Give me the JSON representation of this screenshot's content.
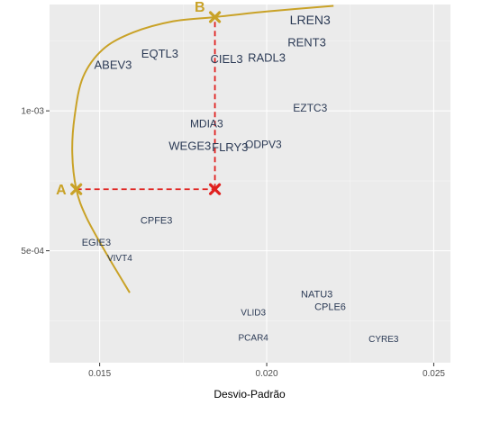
{
  "chart_data": {
    "type": "scatter",
    "title": "",
    "xlabel": "Desvio-Padrão",
    "ylabel": "",
    "xlim": [
      0.0135,
      0.0255
    ],
    "ylim": [
      0.0001,
      0.00138
    ],
    "grid": true,
    "x_ticks": [
      {
        "value": 0.015,
        "label": "0.015"
      },
      {
        "value": 0.02,
        "label": "0.020"
      },
      {
        "value": 0.025,
        "label": "0.025"
      }
    ],
    "y_ticks": [
      {
        "value": 0.0005,
        "label": "5e-04"
      },
      {
        "value": 0.001,
        "label": "1e-03"
      }
    ],
    "points": [
      {
        "label": "LREN3",
        "x": 0.0213,
        "y": 0.001325,
        "size": 14,
        "color": "#35507a"
      },
      {
        "label": "RENT3",
        "x": 0.0212,
        "y": 0.001245,
        "size": 13,
        "color": "#35507a"
      },
      {
        "label": "EQTL3",
        "x": 0.0168,
        "y": 0.001205,
        "size": 13,
        "color": "#2b3a55"
      },
      {
        "label": "ABEV3",
        "x": 0.0154,
        "y": 0.001165,
        "size": 13,
        "color": "#2b3a55"
      },
      {
        "label": "CIEL3",
        "x": 0.0188,
        "y": 0.001185,
        "size": 13,
        "color": "#2b3a55"
      },
      {
        "label": "RADL3",
        "x": 0.02,
        "y": 0.00119,
        "size": 13,
        "color": "#2b3a55"
      },
      {
        "label": "EZTC3",
        "x": 0.0213,
        "y": 0.00101,
        "size": 12,
        "color": "#35507a"
      },
      {
        "label": "MDIA3",
        "x": 0.0182,
        "y": 0.000955,
        "size": 12,
        "color": "#2b3a55"
      },
      {
        "label": "WEGE3",
        "x": 0.0177,
        "y": 0.000875,
        "size": 13,
        "color": "#2b3a55"
      },
      {
        "label": "FLRY3",
        "x": 0.0189,
        "y": 0.00087,
        "size": 13,
        "color": "#2b3a55"
      },
      {
        "label": "ODPV3",
        "x": 0.0199,
        "y": 0.00088,
        "size": 12,
        "color": "#35507a"
      },
      {
        "label": "CPFE3",
        "x": 0.0167,
        "y": 0.00061,
        "size": 11,
        "color": "#2b3a55"
      },
      {
        "label": "EGIE3",
        "x": 0.0149,
        "y": 0.00053,
        "size": 11,
        "color": "#2b3a55"
      },
      {
        "label": "VIVT4",
        "x": 0.0156,
        "y": 0.000475,
        "size": 10,
        "color": "#2b3a55"
      },
      {
        "label": "NATU3",
        "x": 0.0215,
        "y": 0.000345,
        "size": 11,
        "color": "#35507a"
      },
      {
        "label": "CPLE6",
        "x": 0.0219,
        "y": 0.0003,
        "size": 11,
        "color": "#35507a"
      },
      {
        "label": "VLID3",
        "x": 0.0196,
        "y": 0.00028,
        "size": 10,
        "color": "#35507a"
      },
      {
        "label": "PCAR4",
        "x": 0.0196,
        "y": 0.00019,
        "size": 10,
        "color": "#35507a"
      },
      {
        "label": "CYRE3",
        "x": 0.0235,
        "y": 0.000185,
        "size": 10,
        "color": "#35507a"
      }
    ],
    "frontier": {
      "color": "#c9a227",
      "points": [
        [
          0.0159,
          0.00035
        ],
        [
          0.0152,
          0.00049
        ],
        [
          0.0146,
          0.00062
        ],
        [
          0.0143,
          0.00072
        ],
        [
          0.01418,
          0.00085
        ],
        [
          0.01425,
          0.00098
        ],
        [
          0.0145,
          0.00112
        ],
        [
          0.0151,
          0.00122
        ],
        [
          0.016,
          0.00128
        ],
        [
          0.0172,
          0.00132
        ],
        [
          0.01845,
          0.001335
        ],
        [
          0.02,
          0.001355
        ],
        [
          0.022,
          0.001375
        ]
      ]
    },
    "markers": [
      {
        "label": "A",
        "x": 0.0143,
        "y": 0.00072,
        "color": "#c9a227"
      },
      {
        "label": "B",
        "x": 0.01845,
        "y": 0.001335,
        "color": "#c9a227"
      },
      {
        "label": "",
        "x": 0.01845,
        "y": 0.00072,
        "color": "#e0201e"
      }
    ],
    "guide_color": "#e0201e"
  }
}
